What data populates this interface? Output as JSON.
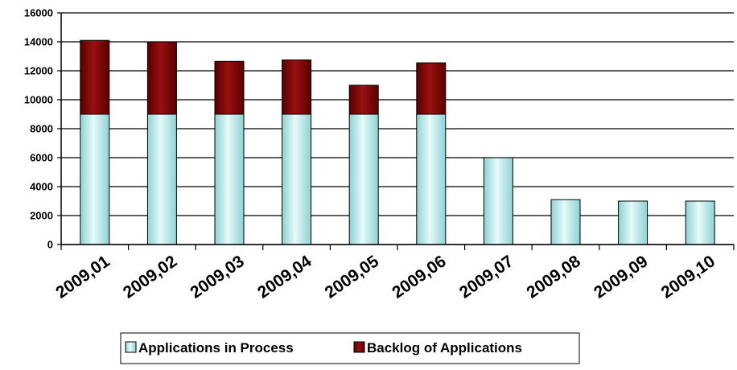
{
  "chart_data": {
    "type": "bar",
    "stacked": true,
    "categories": [
      "2009,01",
      "2009,02",
      "2009,03",
      "2009,04",
      "2009,05",
      "2009,06",
      "2009,07",
      "2009,08",
      "2009,09",
      "2009,10"
    ],
    "series": [
      {
        "name": "Applications in Process",
        "values": [
          9000,
          9000,
          9000,
          9000,
          9000,
          9000,
          6000,
          3100,
          3000,
          3000
        ],
        "color": "#c6ecec"
      },
      {
        "name": "Backlog of Applications",
        "values": [
          5100,
          5000,
          3650,
          3750,
          2000,
          3550,
          0,
          0,
          0,
          0
        ],
        "color": "#800000"
      }
    ],
    "ylim": [
      0,
      16000
    ],
    "yticks": [
      0,
      2000,
      4000,
      6000,
      8000,
      10000,
      12000,
      14000,
      16000
    ],
    "ytick_labels": [
      "0",
      "2000",
      "4000",
      "6000",
      "8000",
      "10000",
      "12000",
      "14000",
      "16000"
    ],
    "grid": true,
    "legend_position": "bottom",
    "title": "",
    "xlabel": "",
    "ylabel": ""
  }
}
